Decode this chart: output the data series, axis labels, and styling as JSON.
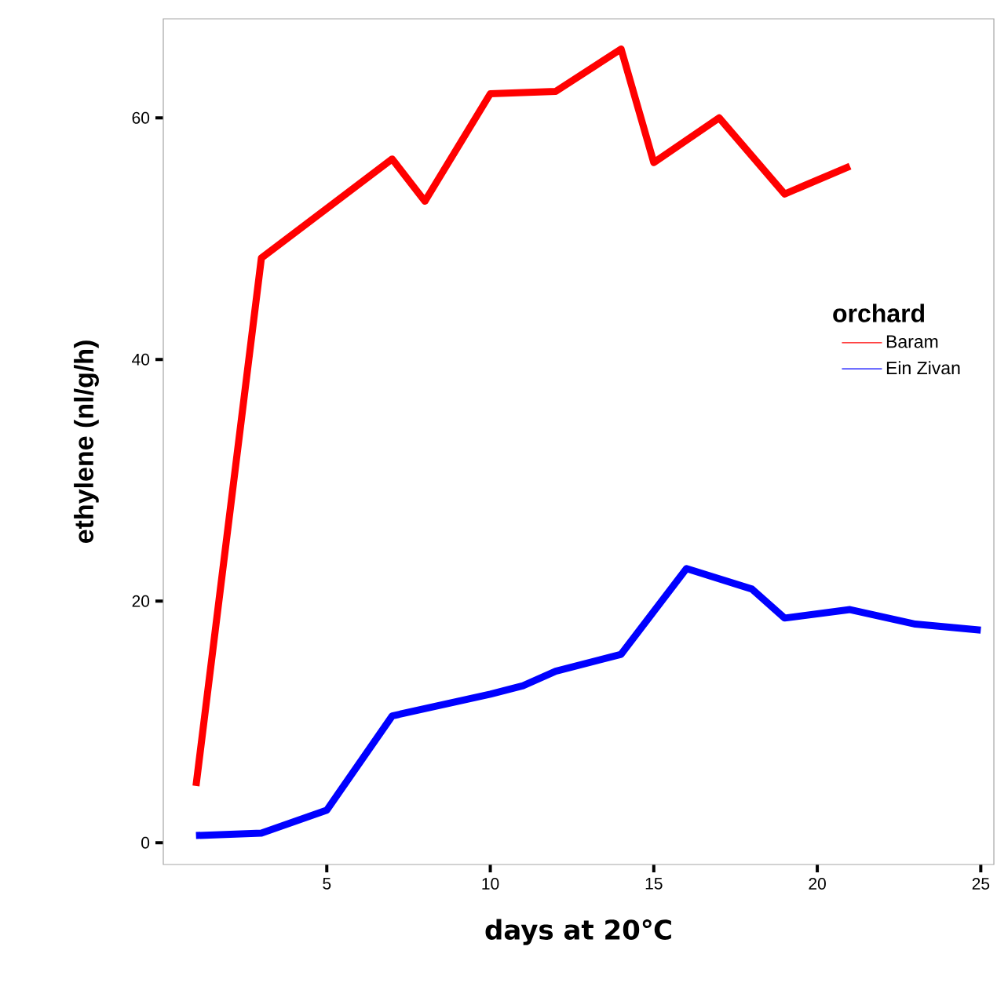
{
  "chart_data": {
    "type": "line",
    "xlabel": "days at 20℃",
    "ylabel": "ethylene (nl/g/h)",
    "legend_title": "orchard",
    "legend": "right",
    "grid": false,
    "marker": "none",
    "line_style": "solid",
    "xlim": [
      0,
      25.4
    ],
    "ylim": [
      -1.8,
      68.2
    ],
    "xticks": [
      5,
      10,
      15,
      20,
      25
    ],
    "yticks": [
      0,
      20,
      40,
      60
    ],
    "series": [
      {
        "name": "Baram",
        "color": "#ff0000",
        "x": [
          1,
          3,
          7,
          8,
          10,
          12,
          14,
          15,
          17,
          19,
          21
        ],
        "values": [
          4.7,
          48.4,
          56.6,
          53.1,
          62,
          62.2,
          65.7,
          56.3,
          60,
          53.7,
          56
        ]
      },
      {
        "name": "Ein Zivan",
        "color": "#0000ff",
        "x": [
          1,
          3,
          5,
          7,
          10,
          11,
          12,
          14,
          16,
          18,
          19,
          21,
          23,
          25
        ],
        "values": [
          0.6,
          0.8,
          2.7,
          10.5,
          12.3,
          13,
          14.2,
          15.6,
          22.7,
          21,
          18.6,
          19.3,
          18.1,
          17.6
        ]
      }
    ]
  }
}
